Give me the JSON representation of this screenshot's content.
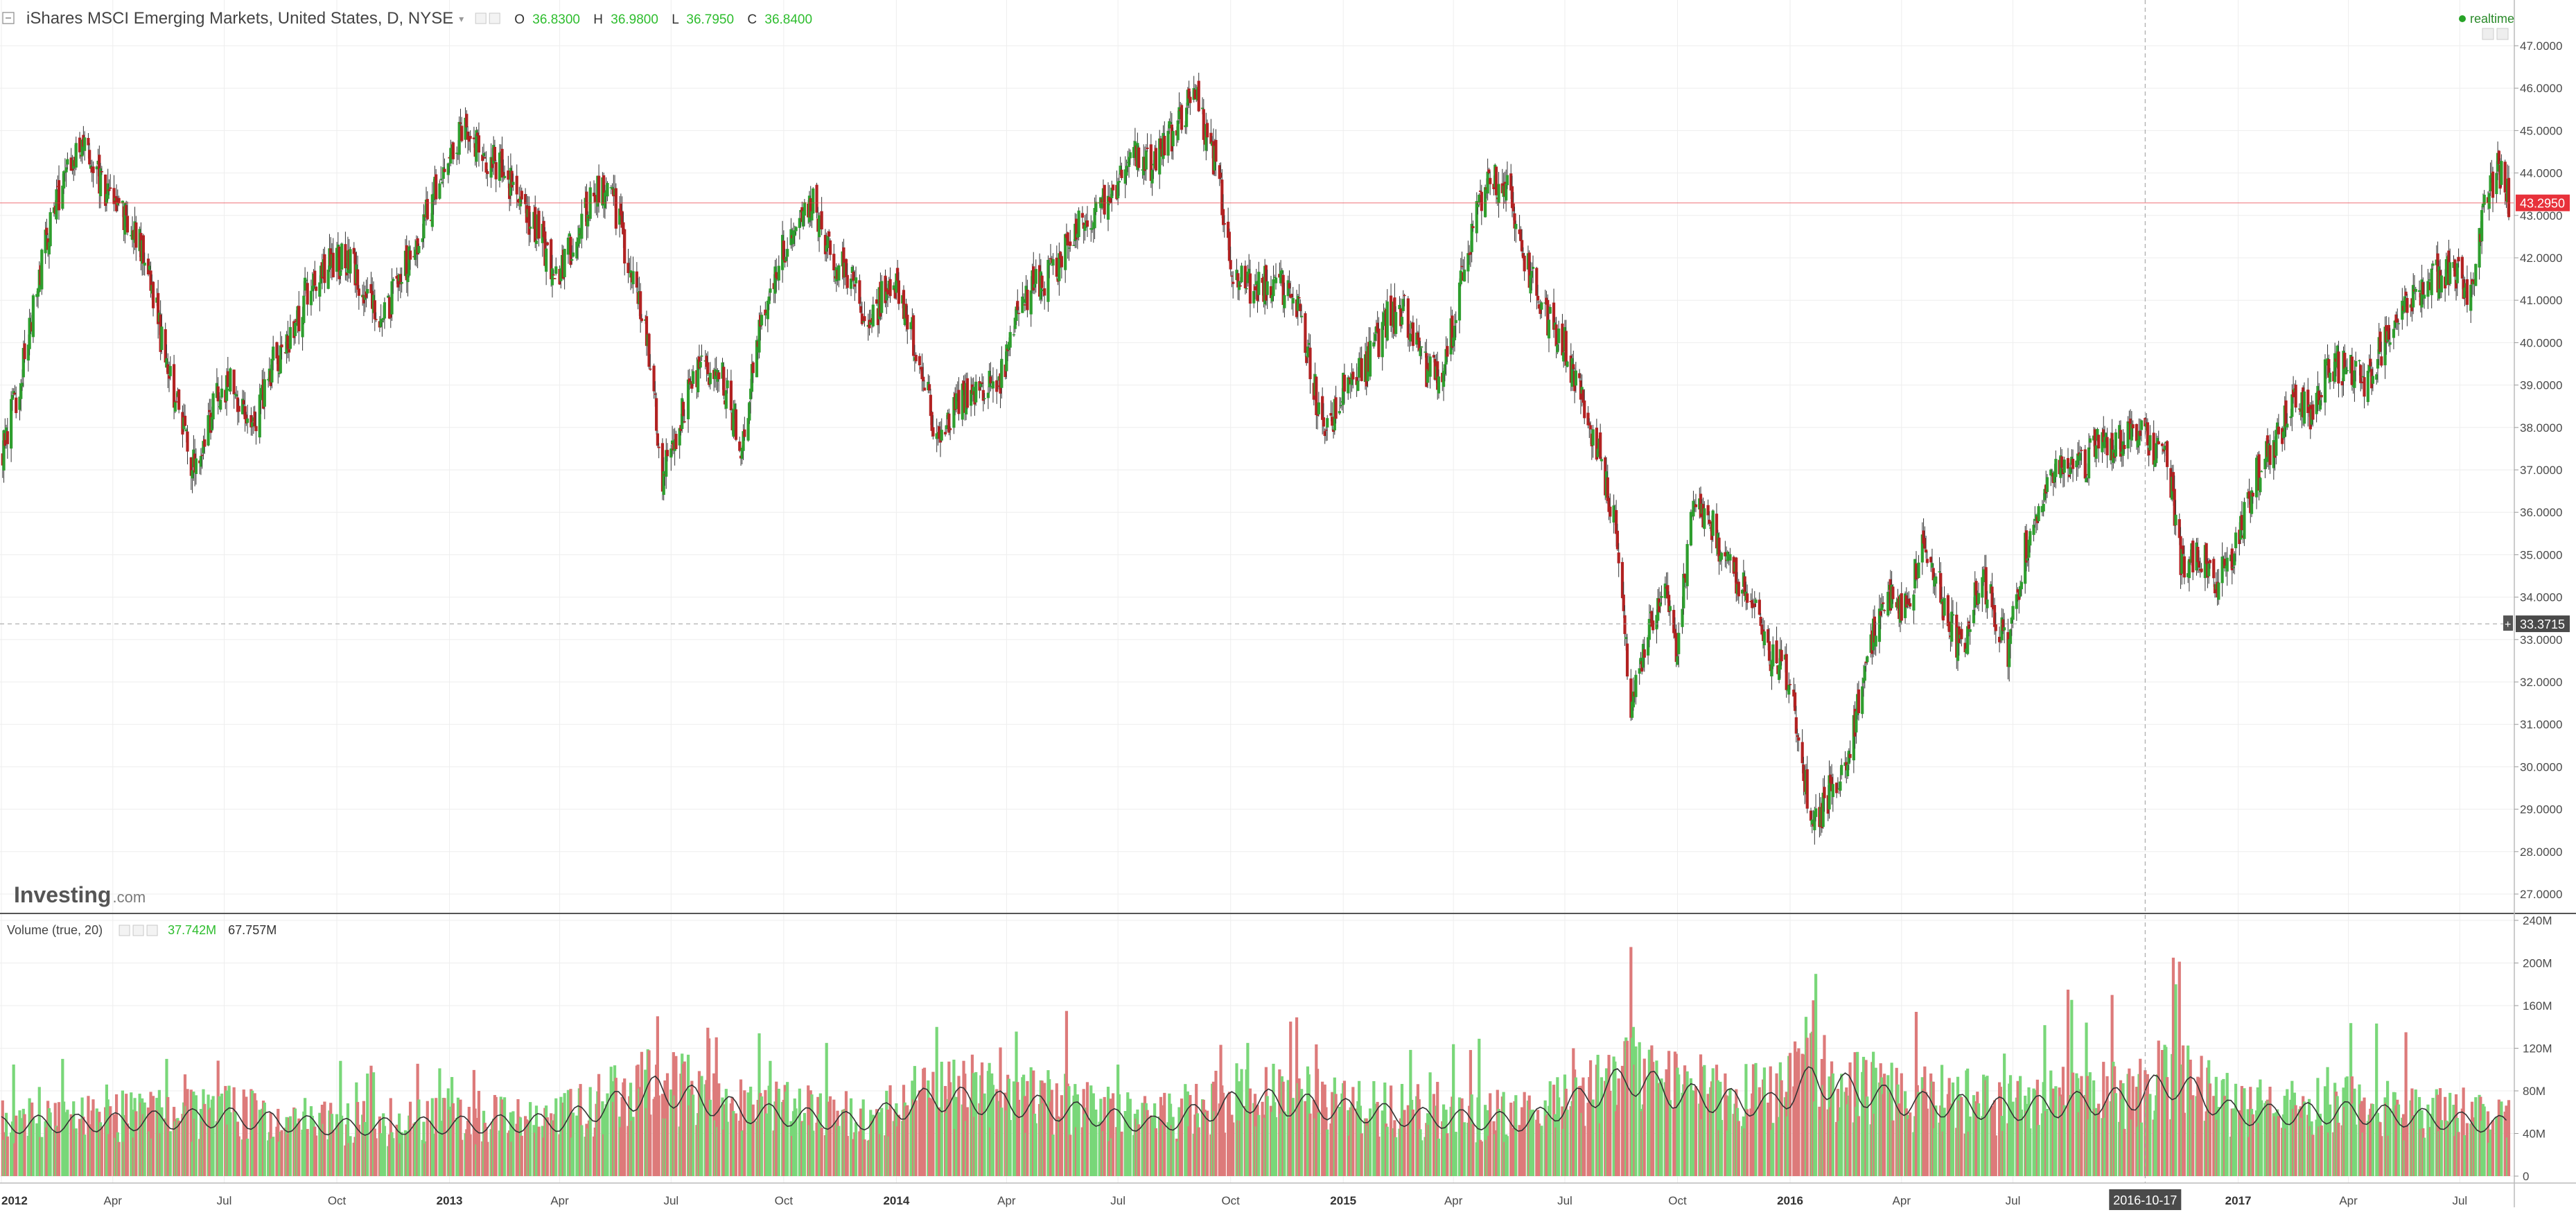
{
  "header": {
    "symbol_title": "iShares MSCI Emerging Markets, United States, D, NYSE",
    "ohlc": {
      "o_label": "O",
      "o_value": "36.8300",
      "h_label": "H",
      "h_value": "36.9800",
      "l_label": "L",
      "l_value": "36.7950",
      "c_label": "C",
      "c_value": "36.8400"
    },
    "realtime_label": "realtime"
  },
  "watermark": {
    "brand": "Investing",
    "suffix": ".com"
  },
  "volume_legend": {
    "title": "Volume (true, 20)",
    "value_1": "37.742M",
    "value_2": "67.757M"
  },
  "crosshair": {
    "price_label": "33.3715",
    "date_label": "2016-10-17"
  },
  "colors": {
    "up": "#2e9e2e",
    "down": "#b22222",
    "volume_up": "#79d779",
    "volume_down": "#dd7a7a",
    "last_price": "#e8313a",
    "grid": "#eeeeee"
  },
  "chart_data": [
    {
      "type": "candlestick",
      "name": "price",
      "ylim": [
        26.5,
        47.5
      ],
      "last_price": 43.295,
      "last_price_label": "43.2950",
      "y_ticks": [
        {
          "v": 47,
          "label": "47.0000"
        },
        {
          "v": 46,
          "label": "46.0000"
        },
        {
          "v": 45,
          "label": "45.0000"
        },
        {
          "v": 44,
          "label": "44.0000"
        },
        {
          "v": 43,
          "label": "43.0000"
        },
        {
          "v": 42,
          "label": "42.0000"
        },
        {
          "v": 41,
          "label": "41.0000"
        },
        {
          "v": 40,
          "label": "40.0000"
        },
        {
          "v": 39,
          "label": "39.0000"
        },
        {
          "v": 38,
          "label": "38.0000"
        },
        {
          "v": 37,
          "label": "37.0000"
        },
        {
          "v": 36,
          "label": "36.0000"
        },
        {
          "v": 35,
          "label": "35.0000"
        },
        {
          "v": 34,
          "label": "34.0000"
        },
        {
          "v": 33,
          "label": "33.0000"
        },
        {
          "v": 32,
          "label": "32.0000"
        },
        {
          "v": 31,
          "label": "31.0000"
        },
        {
          "v": 30,
          "label": "30.0000"
        },
        {
          "v": 29,
          "label": "29.0000"
        },
        {
          "v": 28,
          "label": "28.0000"
        },
        {
          "v": 27,
          "label": "27.0000"
        }
      ],
      "x_ticks": [
        {
          "date": "2012-01-01",
          "label": "2012",
          "bold": true
        },
        {
          "date": "2012-04-01",
          "label": "Apr"
        },
        {
          "date": "2012-07-01",
          "label": "Jul"
        },
        {
          "date": "2012-10-01",
          "label": "Oct"
        },
        {
          "date": "2013-01-01",
          "label": "2013",
          "bold": true
        },
        {
          "date": "2013-04-01",
          "label": "Apr"
        },
        {
          "date": "2013-07-01",
          "label": "Jul"
        },
        {
          "date": "2013-10-01",
          "label": "Oct"
        },
        {
          "date": "2014-01-01",
          "label": "2014",
          "bold": true
        },
        {
          "date": "2014-04-01",
          "label": "Apr"
        },
        {
          "date": "2014-07-01",
          "label": "Jul"
        },
        {
          "date": "2014-10-01",
          "label": "Oct"
        },
        {
          "date": "2015-01-01",
          "label": "2015",
          "bold": true
        },
        {
          "date": "2015-04-01",
          "label": "Apr"
        },
        {
          "date": "2015-07-01",
          "label": "Jul"
        },
        {
          "date": "2015-10-01",
          "label": "Oct"
        },
        {
          "date": "2016-01-01",
          "label": "2016",
          "bold": true
        },
        {
          "date": "2016-04-01",
          "label": "Apr"
        },
        {
          "date": "2016-07-01",
          "label": "Jul"
        },
        {
          "date": "2017-01-01",
          "label": "2017",
          "bold": true
        },
        {
          "date": "2017-04-01",
          "label": "Apr"
        },
        {
          "date": "2017-07-01",
          "label": "Jul"
        }
      ],
      "x_range": [
        "2012-01-01",
        "2017-08-10"
      ],
      "close_path": [
        [
          "2012-01-01",
          37.3
        ],
        [
          "2012-01-20",
          39.6
        ],
        [
          "2012-02-06",
          42.4
        ],
        [
          "2012-02-24",
          44.0
        ],
        [
          "2012-03-08",
          44.8
        ],
        [
          "2012-03-25",
          43.6
        ],
        [
          "2012-04-10",
          43.0
        ],
        [
          "2012-04-25",
          42.3
        ],
        [
          "2012-05-10",
          40.2
        ],
        [
          "2012-05-25",
          38.4
        ],
        [
          "2012-06-05",
          37.0
        ],
        [
          "2012-06-20",
          38.3
        ],
        [
          "2012-07-05",
          39.2
        ],
        [
          "2012-07-25",
          38.0
        ],
        [
          "2012-08-10",
          39.5
        ],
        [
          "2012-08-25",
          40.2
        ],
        [
          "2012-09-10",
          41.5
        ],
        [
          "2012-09-25",
          41.8
        ],
        [
          "2012-10-10",
          42.0
        ],
        [
          "2012-10-25",
          41.2
        ],
        [
          "2012-11-10",
          40.6
        ],
        [
          "2012-11-25",
          41.8
        ],
        [
          "2012-12-10",
          42.7
        ],
        [
          "2012-12-28",
          44.3
        ],
        [
          "2013-01-10",
          45.0
        ],
        [
          "2013-01-25",
          44.5
        ],
        [
          "2013-02-10",
          44.2
        ],
        [
          "2013-02-28",
          43.3
        ],
        [
          "2013-03-15",
          42.6
        ],
        [
          "2013-03-30",
          41.4
        ],
        [
          "2013-04-15",
          42.6
        ],
        [
          "2013-05-02",
          43.6
        ],
        [
          "2013-05-15",
          43.3
        ],
        [
          "2013-06-01",
          41.4
        ],
        [
          "2013-06-15",
          39.4
        ],
        [
          "2013-06-24",
          36.8
        ],
        [
          "2013-07-10",
          38.4
        ],
        [
          "2013-07-25",
          39.4
        ],
        [
          "2013-08-10",
          39.3
        ],
        [
          "2013-08-28",
          37.6
        ],
        [
          "2013-09-10",
          40.3
        ],
        [
          "2013-09-25",
          41.8
        ],
        [
          "2013-10-10",
          42.9
        ],
        [
          "2013-10-25",
          43.4
        ],
        [
          "2013-11-10",
          42.0
        ],
        [
          "2013-11-25",
          41.5
        ],
        [
          "2013-12-10",
          40.4
        ],
        [
          "2013-12-28",
          41.5
        ],
        [
          "2014-01-10",
          40.6
        ],
        [
          "2014-01-25",
          39.0
        ],
        [
          "2014-02-05",
          37.5
        ],
        [
          "2014-02-20",
          38.7
        ],
        [
          "2014-03-10",
          38.9
        ],
        [
          "2014-03-25",
          38.9
        ],
        [
          "2014-04-10",
          40.8
        ],
        [
          "2014-04-25",
          41.4
        ],
        [
          "2014-05-10",
          41.6
        ],
        [
          "2014-05-28",
          42.7
        ],
        [
          "2014-06-15",
          43.3
        ],
        [
          "2014-06-30",
          43.7
        ],
        [
          "2014-07-15",
          44.3
        ],
        [
          "2014-07-30",
          44.1
        ],
        [
          "2014-08-15",
          45.0
        ],
        [
          "2014-09-02",
          45.8
        ],
        [
          "2014-09-20",
          44.0
        ],
        [
          "2014-10-05",
          41.5
        ],
        [
          "2014-10-20",
          41.3
        ],
        [
          "2014-11-05",
          41.5
        ],
        [
          "2014-11-25",
          41.0
        ],
        [
          "2014-12-10",
          38.7
        ],
        [
          "2014-12-20",
          37.9
        ],
        [
          "2015-01-05",
          39.3
        ],
        [
          "2015-01-20",
          39.4
        ],
        [
          "2015-02-05",
          40.5
        ],
        [
          "2015-02-20",
          40.8
        ],
        [
          "2015-03-10",
          39.3
        ],
        [
          "2015-03-25",
          39.3
        ],
        [
          "2015-04-10",
          42.0
        ],
        [
          "2015-04-28",
          43.8
        ],
        [
          "2015-05-15",
          43.7
        ],
        [
          "2015-05-30",
          41.9
        ],
        [
          "2015-06-15",
          40.6
        ],
        [
          "2015-06-30",
          40.1
        ],
        [
          "2015-07-15",
          38.6
        ],
        [
          "2015-07-30",
          37.3
        ],
        [
          "2015-08-12",
          35.6
        ],
        [
          "2015-08-24",
          31.2
        ],
        [
          "2015-09-05",
          33.0
        ],
        [
          "2015-09-20",
          34.4
        ],
        [
          "2015-09-30",
          32.7
        ],
        [
          "2015-10-15",
          36.3
        ],
        [
          "2015-10-30",
          35.6
        ],
        [
          "2015-11-15",
          34.6
        ],
        [
          "2015-11-30",
          34.2
        ],
        [
          "2015-12-15",
          32.7
        ],
        [
          "2015-12-30",
          32.2
        ],
        [
          "2016-01-12",
          29.8
        ],
        [
          "2016-01-21",
          28.6
        ],
        [
          "2016-02-05",
          29.6
        ],
        [
          "2016-02-20",
          30.5
        ],
        [
          "2016-03-05",
          32.7
        ],
        [
          "2016-03-20",
          34.1
        ],
        [
          "2016-04-05",
          33.8
        ],
        [
          "2016-04-20",
          35.3
        ],
        [
          "2016-05-05",
          33.9
        ],
        [
          "2016-05-20",
          32.6
        ],
        [
          "2016-06-05",
          34.6
        ],
        [
          "2016-06-27",
          32.8
        ],
        [
          "2016-07-10",
          35.0
        ],
        [
          "2016-07-25",
          36.2
        ],
        [
          "2016-08-10",
          37.3
        ],
        [
          "2016-08-25",
          37.1
        ],
        [
          "2016-09-10",
          37.6
        ],
        [
          "2016-09-25",
          37.7
        ],
        [
          "2016-10-10",
          37.9
        ],
        [
          "2016-10-25",
          37.5
        ],
        [
          "2016-11-05",
          37.2
        ],
        [
          "2016-11-15",
          34.8
        ],
        [
          "2016-11-30",
          35.1
        ],
        [
          "2016-12-15",
          34.3
        ],
        [
          "2016-12-30",
          35.1
        ],
        [
          "2017-01-15",
          36.8
        ],
        [
          "2017-01-30",
          37.6
        ],
        [
          "2017-02-15",
          38.6
        ],
        [
          "2017-03-01",
          38.3
        ],
        [
          "2017-03-15",
          39.6
        ],
        [
          "2017-03-30",
          39.4
        ],
        [
          "2017-04-15",
          39.1
        ],
        [
          "2017-04-30",
          39.9
        ],
        [
          "2017-05-15",
          40.9
        ],
        [
          "2017-05-30",
          41.3
        ],
        [
          "2017-06-15",
          41.6
        ],
        [
          "2017-06-30",
          41.6
        ],
        [
          "2017-07-10",
          41.2
        ],
        [
          "2017-07-20",
          43.2
        ],
        [
          "2017-08-01",
          44.1
        ],
        [
          "2017-08-10",
          43.4
        ]
      ]
    },
    {
      "type": "bar",
      "name": "Volume (true, 20)",
      "ylim": [
        0,
        250
      ],
      "unit": "M",
      "moving_average_period": 20,
      "y_ticks": [
        {
          "v": 240,
          "label": "240M"
        },
        {
          "v": 200,
          "label": "200M"
        },
        {
          "v": 160,
          "label": "160M"
        },
        {
          "v": 120,
          "label": "120M"
        },
        {
          "v": 80,
          "label": "80M"
        },
        {
          "v": 40,
          "label": "40M"
        },
        {
          "v": 0,
          "label": "0"
        }
      ],
      "base_level_path": [
        [
          "2012-01-01",
          52
        ],
        [
          "2012-04-01",
          55
        ],
        [
          "2012-07-01",
          60
        ],
        [
          "2012-10-01",
          50
        ],
        [
          "2013-01-01",
          52
        ],
        [
          "2013-04-01",
          55
        ],
        [
          "2013-06-20",
          88
        ],
        [
          "2013-09-01",
          65
        ],
        [
          "2013-12-01",
          55
        ],
        [
          "2014-02-01",
          80
        ],
        [
          "2014-05-01",
          70
        ],
        [
          "2014-08-01",
          52
        ],
        [
          "2014-10-15",
          78
        ],
        [
          "2014-12-15",
          70
        ],
        [
          "2015-03-01",
          60
        ],
        [
          "2015-06-01",
          55
        ],
        [
          "2015-08-24",
          100
        ],
        [
          "2015-10-01",
          82
        ],
        [
          "2015-12-15",
          72
        ],
        [
          "2016-01-20",
          98
        ],
        [
          "2016-04-01",
          75
        ],
        [
          "2016-07-01",
          68
        ],
        [
          "2016-10-01",
          78
        ],
        [
          "2016-11-10",
          95
        ],
        [
          "2017-01-01",
          62
        ],
        [
          "2017-04-01",
          65
        ],
        [
          "2017-08-10",
          52
        ]
      ],
      "spikes": [
        {
          "date": "2012-02-20",
          "value": 110
        },
        {
          "date": "2012-05-15",
          "value": 110
        },
        {
          "date": "2012-10-20",
          "value": 105
        },
        {
          "date": "2013-06-20",
          "value": 150
        },
        {
          "date": "2013-11-05",
          "value": 125
        },
        {
          "date": "2014-02-03",
          "value": 140
        },
        {
          "date": "2014-03-15",
          "value": 150
        },
        {
          "date": "2014-05-20",
          "value": 155
        },
        {
          "date": "2014-10-15",
          "value": 125
        },
        {
          "date": "2015-07-08",
          "value": 120
        },
        {
          "date": "2015-08-24",
          "value": 215
        },
        {
          "date": "2015-08-26",
          "value": 140
        },
        {
          "date": "2016-01-20",
          "value": 165
        },
        {
          "date": "2016-06-24",
          "value": 115
        },
        {
          "date": "2016-08-15",
          "value": 175
        },
        {
          "date": "2016-09-20",
          "value": 170
        },
        {
          "date": "2016-11-09",
          "value": 205
        },
        {
          "date": "2016-11-11",
          "value": 180
        },
        {
          "date": "2017-05-18",
          "value": 135
        },
        {
          "date": "2017-08-05",
          "value": 105
        }
      ],
      "current_values_M": [
        37.742,
        67.757
      ]
    }
  ]
}
